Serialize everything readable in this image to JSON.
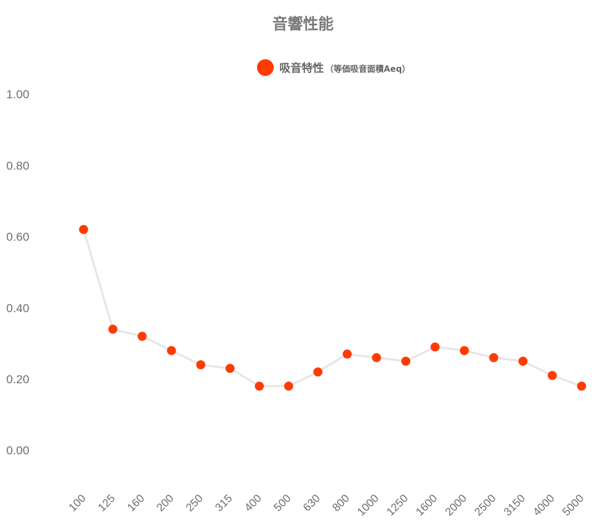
{
  "chart_data": {
    "type": "line",
    "title": "音響性能",
    "legend": {
      "label": "吸音特性",
      "sublabel": "（等価吸音面積Aeq）",
      "position": "top-center"
    },
    "categories": [
      "100",
      "125",
      "160",
      "200",
      "250",
      "315",
      "400",
      "500",
      "630",
      "800",
      "1000",
      "1250",
      "1600",
      "2000",
      "2500",
      "3150",
      "4000",
      "5000"
    ],
    "y_ticks": [
      "0.00",
      "0.20",
      "0.40",
      "0.60",
      "0.80",
      "1.00"
    ],
    "ylim": [
      -0.08,
      1.02
    ],
    "grid": false,
    "series": [
      {
        "name": "吸音特性（等価吸音面積Aeq）",
        "values": [
          0.62,
          0.34,
          0.32,
          0.28,
          0.24,
          0.23,
          0.18,
          0.18,
          0.22,
          0.27,
          0.26,
          0.25,
          0.29,
          0.28,
          0.26,
          0.25,
          0.21,
          0.18
        ],
        "point_color": "#ff3b00",
        "line_color": "#e6e6e6"
      }
    ]
  }
}
